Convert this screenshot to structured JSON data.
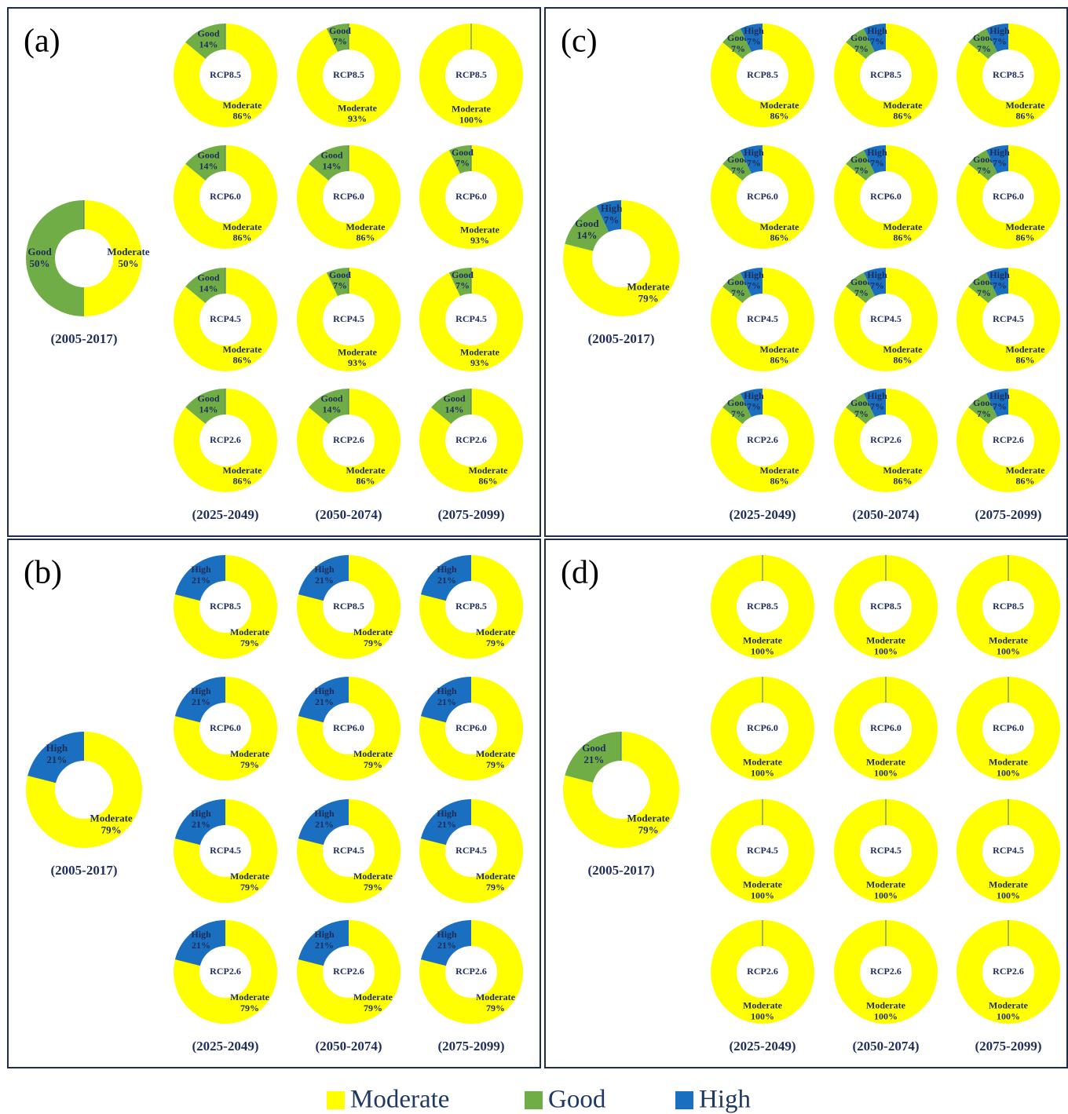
{
  "chart_data": {
    "type": "donut",
    "categories": [
      "Moderate",
      "Good",
      "High"
    ],
    "colors": [
      "#ffff00",
      "#70ad47",
      "#1a6fc0"
    ],
    "scenarios": [
      "RCP8.5",
      "RCP6.0",
      "RCP4.5",
      "RCP2.6"
    ],
    "periods": [
      "(2025-2049)",
      "(2050-2074)",
      "(2075-2099)"
    ],
    "baseline_period": "(2005-2017)",
    "panels": [
      {
        "label": "(a)",
        "baseline": {
          "values": [
            50,
            50,
            0
          ],
          "value_labels": [
            "50%",
            "50%",
            null
          ]
        },
        "projections": [
          [
            {
              "values": [
                86,
                14,
                0
              ],
              "value_labels": [
                "86%",
                "14%",
                null
              ]
            },
            {
              "values": [
                93,
                7,
                0
              ],
              "value_labels": [
                "93%",
                "7%",
                null
              ]
            },
            {
              "values": [
                100,
                0,
                0
              ],
              "value_labels": [
                "100%",
                null,
                null
              ]
            }
          ],
          [
            {
              "values": [
                86,
                14,
                0
              ],
              "value_labels": [
                "86%",
                "14%",
                null
              ]
            },
            {
              "values": [
                86,
                14,
                0
              ],
              "value_labels": [
                "86%",
                "14%",
                null
              ]
            },
            {
              "values": [
                93,
                7,
                0
              ],
              "value_labels": [
                "93%",
                "7%",
                null
              ]
            }
          ],
          [
            {
              "values": [
                86,
                14,
                0
              ],
              "value_labels": [
                "86%",
                "14%",
                null
              ]
            },
            {
              "values": [
                93,
                7,
                0
              ],
              "value_labels": [
                "93%",
                "7%",
                null
              ]
            },
            {
              "values": [
                93,
                7,
                0
              ],
              "value_labels": [
                "93%",
                "7%",
                null
              ]
            }
          ],
          [
            {
              "values": [
                86,
                14,
                0
              ],
              "value_labels": [
                "86%",
                "14%",
                null
              ]
            },
            {
              "values": [
                86,
                14,
                0
              ],
              "value_labels": [
                "86%",
                "14%",
                null
              ]
            },
            {
              "values": [
                86,
                14,
                0
              ],
              "value_labels": [
                "86%",
                "14%",
                null
              ]
            }
          ]
        ]
      },
      {
        "label": "(b)",
        "baseline": {
          "values": [
            79,
            0,
            21
          ],
          "value_labels": [
            "79%",
            null,
            "21%"
          ]
        },
        "projections": [
          [
            {
              "values": [
                79,
                0,
                21
              ],
              "value_labels": [
                "79%",
                null,
                "21%"
              ]
            },
            {
              "values": [
                79,
                0,
                21
              ],
              "value_labels": [
                "79%",
                null,
                "21%"
              ]
            },
            {
              "values": [
                79,
                0,
                21
              ],
              "value_labels": [
                "79%",
                null,
                "21%"
              ]
            }
          ],
          [
            {
              "values": [
                79,
                0,
                21
              ],
              "value_labels": [
                "79%",
                null,
                "21%"
              ]
            },
            {
              "values": [
                79,
                0,
                21
              ],
              "value_labels": [
                "79%",
                null,
                "21%"
              ]
            },
            {
              "values": [
                79,
                0,
                21
              ],
              "value_labels": [
                "79%",
                null,
                "21%"
              ]
            }
          ],
          [
            {
              "values": [
                79,
                0,
                21
              ],
              "value_labels": [
                "79%",
                null,
                "21%"
              ]
            },
            {
              "values": [
                79,
                0,
                21
              ],
              "value_labels": [
                "79%",
                null,
                "21%"
              ]
            },
            {
              "values": [
                79,
                0,
                21
              ],
              "value_labels": [
                "79%",
                null,
                "21%"
              ]
            }
          ],
          [
            {
              "values": [
                79,
                0,
                21
              ],
              "value_labels": [
                "79%",
                null,
                "21%"
              ]
            },
            {
              "values": [
                79,
                0,
                21
              ],
              "value_labels": [
                "79%",
                null,
                "21%"
              ]
            },
            {
              "values": [
                79,
                0,
                21
              ],
              "value_labels": [
                "79%",
                null,
                "21%"
              ]
            }
          ]
        ]
      },
      {
        "label": "(c)",
        "baseline": {
          "values": [
            79,
            14,
            7
          ],
          "value_labels": [
            "79%",
            "14%",
            "7%"
          ]
        },
        "projections": [
          [
            {
              "values": [
                86,
                7,
                7
              ],
              "value_labels": [
                "86%",
                "7%",
                "7%"
              ]
            },
            {
              "values": [
                86,
                7,
                7
              ],
              "value_labels": [
                "86%",
                "7%",
                "7%"
              ]
            },
            {
              "values": [
                86,
                7,
                7
              ],
              "value_labels": [
                "86%",
                "7%",
                "7%"
              ]
            }
          ],
          [
            {
              "values": [
                86,
                7,
                7
              ],
              "value_labels": [
                "86%",
                "7%",
                "7%"
              ]
            },
            {
              "values": [
                86,
                7,
                7
              ],
              "value_labels": [
                "86%",
                "7%",
                "7%"
              ]
            },
            {
              "values": [
                86,
                7,
                7
              ],
              "value_labels": [
                "86%",
                "7%",
                "7%"
              ]
            }
          ],
          [
            {
              "values": [
                86,
                7,
                7
              ],
              "value_labels": [
                "86%",
                "7%",
                "7%"
              ]
            },
            {
              "values": [
                86,
                7,
                7
              ],
              "value_labels": [
                "86%",
                "7%",
                "7%"
              ]
            },
            {
              "values": [
                86,
                7,
                7
              ],
              "value_labels": [
                "86%",
                "7%",
                "7%"
              ]
            }
          ],
          [
            {
              "values": [
                86,
                7,
                7
              ],
              "value_labels": [
                "86%",
                "7%",
                "7%"
              ]
            },
            {
              "values": [
                86,
                7,
                7
              ],
              "value_labels": [
                "86%",
                "7%",
                "7%"
              ]
            },
            {
              "values": [
                86,
                7,
                7
              ],
              "value_labels": [
                "86%",
                "7%",
                "7%"
              ]
            }
          ]
        ]
      },
      {
        "label": "(d)",
        "baseline": {
          "values": [
            79,
            21,
            0
          ],
          "value_labels": [
            "79%",
            "21%",
            null
          ]
        },
        "projections": [
          [
            {
              "values": [
                100,
                0,
                0
              ],
              "value_labels": [
                "100%",
                null,
                null
              ]
            },
            {
              "values": [
                100,
                0,
                0
              ],
              "value_labels": [
                "100%",
                null,
                null
              ]
            },
            {
              "values": [
                100,
                0,
                0
              ],
              "value_labels": [
                "100%",
                null,
                null
              ]
            }
          ],
          [
            {
              "values": [
                100,
                0,
                0
              ],
              "value_labels": [
                "100%",
                null,
                null
              ]
            },
            {
              "values": [
                100,
                0,
                0
              ],
              "value_labels": [
                "100%",
                null,
                null
              ]
            },
            {
              "values": [
                100,
                0,
                0
              ],
              "value_labels": [
                "100%",
                null,
                null
              ]
            }
          ],
          [
            {
              "values": [
                100,
                0,
                0
              ],
              "value_labels": [
                "100%",
                null,
                null
              ]
            },
            {
              "values": [
                100,
                0,
                0
              ],
              "value_labels": [
                "100%",
                null,
                null
              ]
            },
            {
              "values": [
                100,
                0,
                0
              ],
              "value_labels": [
                "100%",
                null,
                null
              ]
            }
          ],
          [
            {
              "values": [
                100,
                0,
                0
              ],
              "value_labels": [
                "100%",
                null,
                null
              ]
            },
            {
              "values": [
                100,
                0,
                0
              ],
              "value_labels": [
                "100%",
                null,
                null
              ]
            },
            {
              "values": [
                100,
                0,
                0
              ],
              "value_labels": [
                "100%",
                null,
                null
              ]
            }
          ]
        ]
      }
    ]
  }
}
